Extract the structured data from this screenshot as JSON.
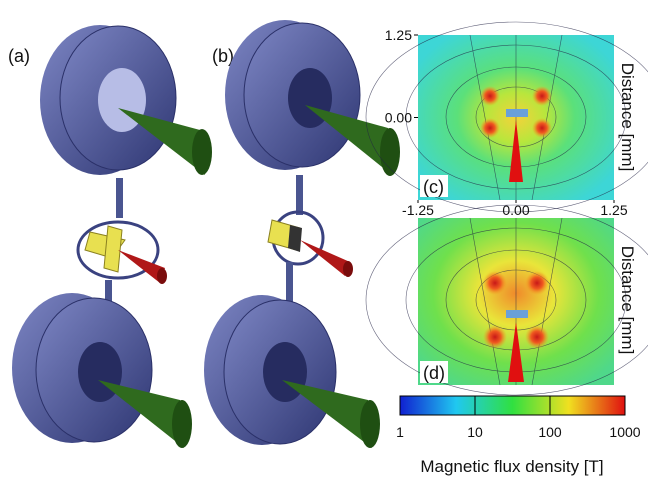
{
  "panels": {
    "a": "(a)",
    "b": "(b)",
    "c": "(c)",
    "d": "(d)"
  },
  "field_map": {
    "ylim": [
      -1.25,
      1.25
    ],
    "xlim": [
      -1.25,
      1.25
    ],
    "yticks": [
      {
        "value": 1.25,
        "label": "1.25"
      },
      {
        "value": 0,
        "label": "0.00"
      }
    ],
    "xticks": [
      {
        "value": -1.25,
        "label": "-1.25"
      },
      {
        "value": 0,
        "label": "0.00"
      },
      {
        "value": 1.25,
        "label": "1.25"
      }
    ],
    "ylabel": "Distance [mm]"
  },
  "colorbar": {
    "lim": [
      1,
      1000
    ],
    "log_scale": true,
    "ticks": [
      1,
      10,
      100,
      1000
    ],
    "label": "Magnetic flux density [T]"
  }
}
